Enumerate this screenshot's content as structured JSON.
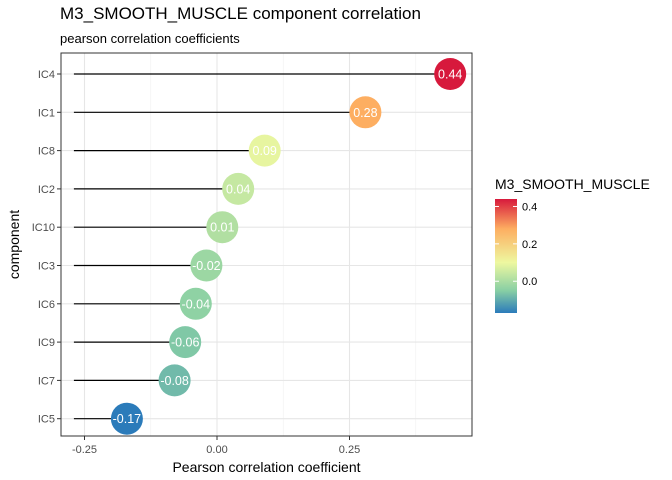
{
  "chart_data": {
    "type": "lollipop",
    "title": "M3_SMOOTH_MUSCLE component correlation",
    "subtitle": "pearson correlation coefficients",
    "xlabel": "Pearson correlation coefficient",
    "ylabel": "component",
    "xlim": [
      -0.29,
      0.48
    ],
    "x_ticks": [
      -0.25,
      0.0,
      0.25
    ],
    "x_tick_labels": [
      "-0.25",
      "0.00",
      "0.25"
    ],
    "grid": true,
    "categories": [
      "IC4",
      "IC1",
      "IC8",
      "IC2",
      "IC10",
      "IC3",
      "IC6",
      "IC9",
      "IC7",
      "IC5"
    ],
    "values": [
      0.44,
      0.28,
      0.09,
      0.04,
      0.01,
      -0.02,
      -0.04,
      -0.06,
      -0.08,
      -0.17
    ],
    "value_labels": [
      "0.44",
      "0.28",
      "0.09",
      "0.04",
      "0.01",
      "-0.02",
      "-0.04",
      "-0.06",
      "-0.08",
      "-0.17"
    ],
    "segment_start": -0.27,
    "legend": {
      "title": "M3_SMOOTH_MUSCLE",
      "placement": "right",
      "ticks": [
        0.0,
        0.2,
        0.4
      ],
      "tick_labels": [
        "0.0",
        "0.2",
        "0.4"
      ],
      "range": [
        -0.17,
        0.44
      ]
    },
    "colors": {
      "low": "#2b7bba",
      "mid_low": "#88cfa4",
      "mid": "#eef8a0",
      "mid_high": "#fdae61",
      "high": "#d7193c"
    }
  }
}
